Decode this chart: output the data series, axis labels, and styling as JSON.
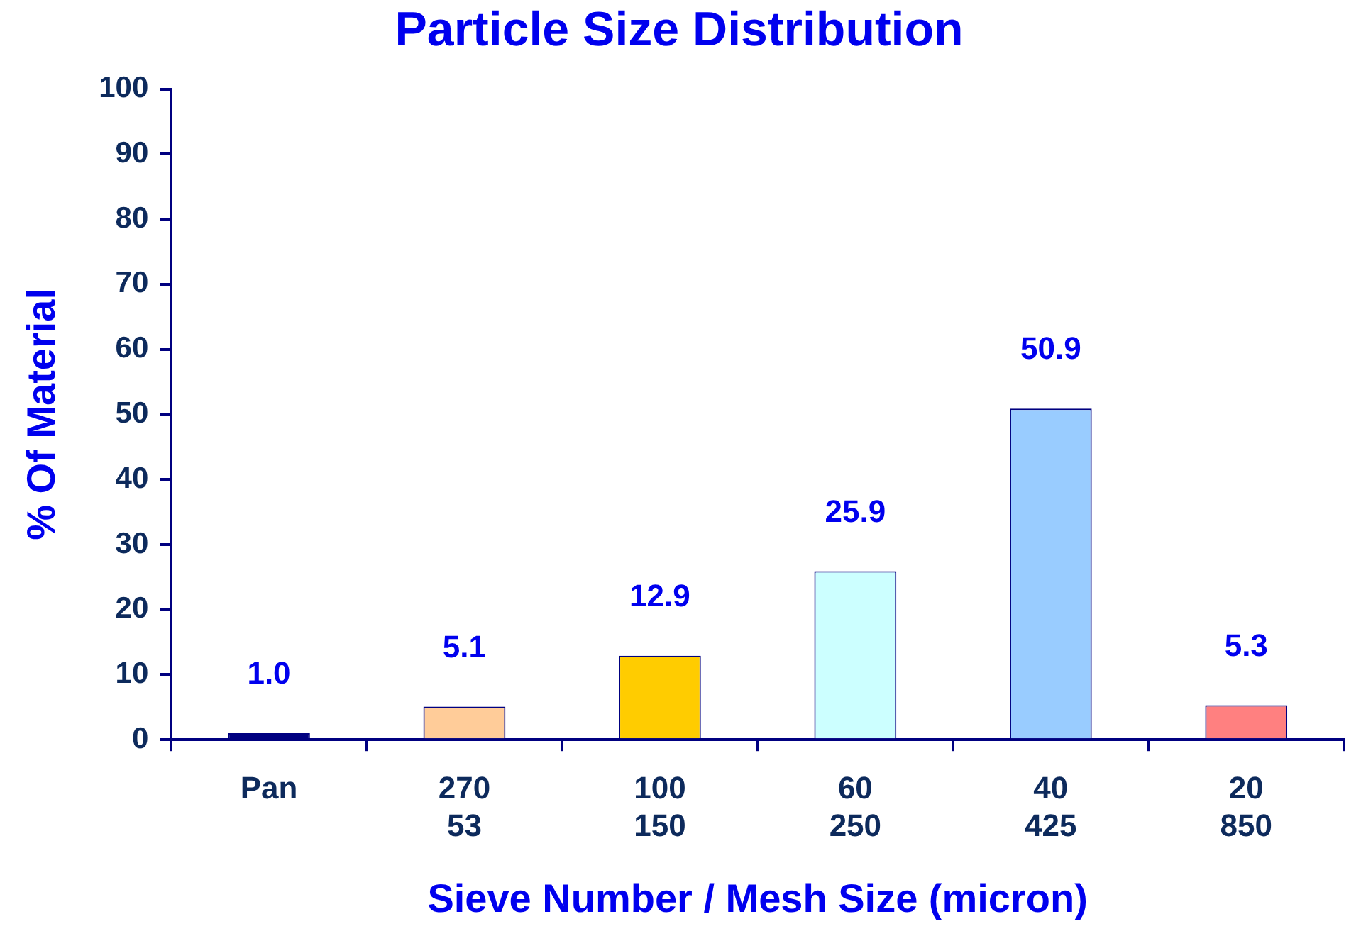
{
  "chart_data": {
    "type": "bar",
    "title": "Particle Size Distribution",
    "xlabel": "Sieve Number / Mesh Size (micron)",
    "ylabel": "% Of Material",
    "categories": [
      "Pan",
      "270\n53",
      "100\n150",
      "60\n250",
      "40\n425",
      "20\n850"
    ],
    "values": [
      1.0,
      5.1,
      12.9,
      25.9,
      50.9,
      5.3
    ],
    "value_labels": [
      "1.0",
      "5.1",
      "12.9",
      "25.9",
      "50.9",
      "5.3"
    ],
    "colors": [
      "#000080",
      "#ffcc99",
      "#ffcc00",
      "#ccffff",
      "#99ccff",
      "#ff8080"
    ],
    "ylim": [
      0,
      100
    ],
    "yticks": [
      0,
      10,
      20,
      30,
      40,
      50,
      60,
      70,
      80,
      90,
      100
    ],
    "grid": false,
    "legend": false
  }
}
